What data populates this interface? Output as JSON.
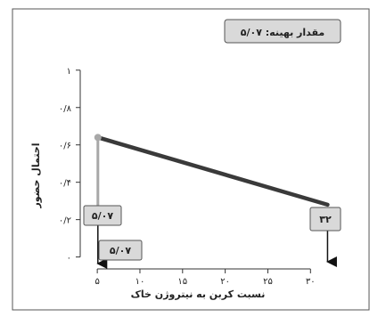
{
  "chart_data": {
    "type": "line",
    "xlabel": "نسبت کربن به نیتروژن خاک",
    "ylabel": "احتمال حضور",
    "xlim": [
      3,
      33
    ],
    "ylim": [
      -0.04,
      1.08
    ],
    "xticks": [
      {
        "value": 5,
        "label": "۵"
      },
      {
        "value": 10,
        "label": "۱۰"
      },
      {
        "value": 15,
        "label": "۱۵"
      },
      {
        "value": 20,
        "label": "۲۰"
      },
      {
        "value": 25,
        "label": "۲۵"
      },
      {
        "value": 30,
        "label": "۳۰"
      }
    ],
    "yticks": [
      {
        "value": 0,
        "label": "۰"
      },
      {
        "value": 0.2,
        "label": "۰/۲"
      },
      {
        "value": 0.4,
        "label": "۰/۴"
      },
      {
        "value": 0.6,
        "label": "۰/۶"
      },
      {
        "value": 0.8,
        "label": "۰/۸"
      },
      {
        "value": 1,
        "label": "۱"
      }
    ],
    "series": [
      {
        "x": [
          5.07,
          32
        ],
        "y": [
          0.64,
          0.28
        ],
        "color": "#3a3a3a"
      }
    ],
    "optimum": {
      "x": 5.07,
      "y": 0.64,
      "color": "#a8a8a8"
    },
    "annotations": {
      "optimum_label": "مقدار بهینه: ۵/۰۷",
      "left_box": "۵/۰۷",
      "bottom_box": "۵/۰۷",
      "right_box": "۳۲"
    },
    "colors": {
      "box_fill": "#d9d9d9",
      "box_stroke": "#555555",
      "frame": "#555555"
    }
  }
}
